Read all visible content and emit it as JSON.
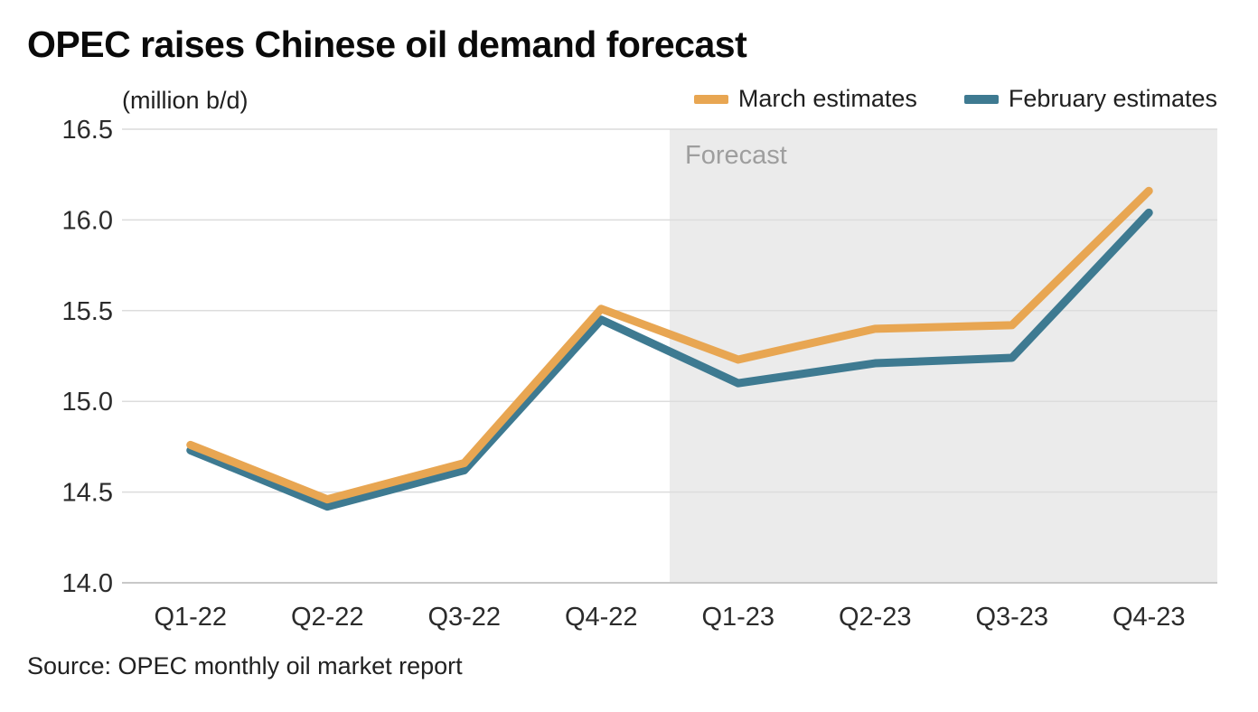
{
  "title": "OPEC raises Chinese oil demand forecast",
  "unit_label": "(million b/d)",
  "source": "Source: OPEC monthly oil market report",
  "colors": {
    "march_line": "#E8A652",
    "february_line": "#3E7A91",
    "gridline": "#DCDCDC",
    "axis_line": "#C8C8C8",
    "tick_text": "#2B2B2B",
    "forecast_background": "#EBEBEB",
    "forecast_text": "#9E9E9E"
  },
  "chart_data": {
    "type": "line",
    "title": "OPEC raises Chinese oil demand forecast",
    "ylabel": "(million b/d)",
    "xlabel": "",
    "categories": [
      "Q1-22",
      "Q2-22",
      "Q3-22",
      "Q4-22",
      "Q1-23",
      "Q2-23",
      "Q3-23",
      "Q4-23"
    ],
    "series": [
      {
        "name": "March estimates",
        "color": "#E8A652",
        "values": [
          14.76,
          14.46,
          14.66,
          15.51,
          15.23,
          15.4,
          15.42,
          16.16
        ]
      },
      {
        "name": "February estimates",
        "color": "#3E7A91",
        "values": [
          14.73,
          14.42,
          14.62,
          15.45,
          15.1,
          15.21,
          15.24,
          16.04
        ]
      }
    ],
    "ylim": [
      14.0,
      16.5
    ],
    "yticks": [
      14.0,
      14.5,
      15.0,
      15.5,
      16.0,
      16.5
    ],
    "grid": true,
    "legend_position": "top-right",
    "forecast": {
      "label": "Forecast",
      "start_category": "Q1-23",
      "start_index": 4,
      "background": "#EBEBEB",
      "label_color": "#9E9E9E"
    }
  }
}
